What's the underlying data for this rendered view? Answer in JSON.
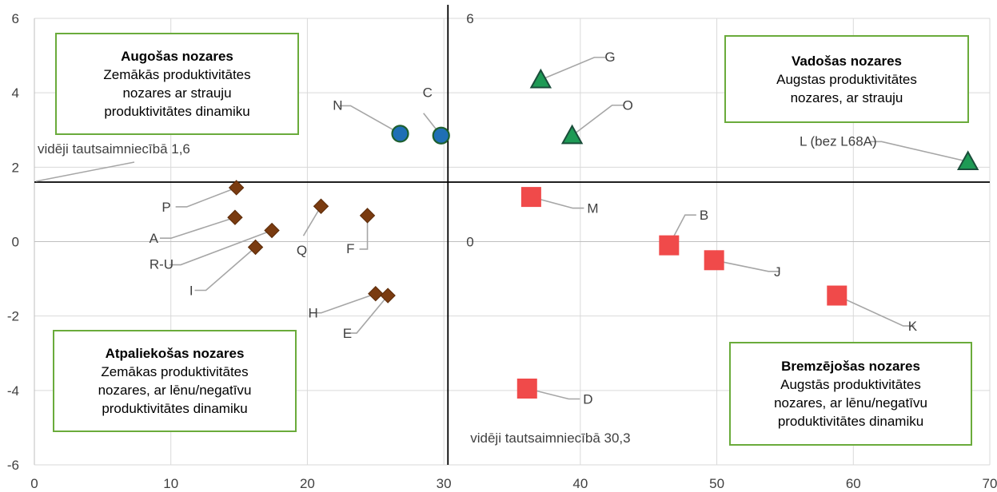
{
  "chart_data": {
    "type": "scatter",
    "xlim": [
      0,
      70
    ],
    "ylim": [
      -6,
      6
    ],
    "x_ticks": [
      "0",
      "10",
      "20",
      "30",
      "40",
      "50",
      "60",
      "70"
    ],
    "y_ticks": [
      "-6",
      "-4",
      "-2",
      "0",
      "2",
      "4",
      "6"
    ],
    "grid": true,
    "reference_lines": {
      "vertical_x": 30.3,
      "horizontal_y": 1.6,
      "vertical_label": "vidēji tautsaimniecībā 30,3",
      "horizontal_label": "vidēji tautsaimniecībā 1,6",
      "vertical_top_value": "6",
      "vertical_zero_value": "0"
    },
    "groups": [
      {
        "marker": "circle",
        "color": "#1f6fb5",
        "stroke": "#1e5f2e",
        "points": [
          {
            "label": "N",
            "x": 26.8,
            "y": 2.9
          },
          {
            "label": "C",
            "x": 29.8,
            "y": 2.85
          }
        ]
      },
      {
        "marker": "triangle",
        "color": "#1e9a55",
        "stroke": "#1a4d3a",
        "points": [
          {
            "label": "G",
            "x": 37.1,
            "y": 4.35
          },
          {
            "label": "O",
            "x": 39.4,
            "y": 2.85
          },
          {
            "label": "L (bez L68A)",
            "x": 68.4,
            "y": 2.15
          }
        ]
      },
      {
        "marker": "diamond",
        "color": "#7a3b10",
        "stroke": "#5a2a08",
        "points": [
          {
            "label": "P",
            "x": 14.8,
            "y": 1.45
          },
          {
            "label": "A",
            "x": 14.7,
            "y": 0.65
          },
          {
            "label": "R-U",
            "x": 17.4,
            "y": 0.3
          },
          {
            "label": "I",
            "x": 16.2,
            "y": -0.15
          },
          {
            "label": "Q",
            "x": 21.0,
            "y": 0.95
          },
          {
            "label": "F",
            "x": 24.4,
            "y": 0.7
          },
          {
            "label": "H",
            "x": 25.0,
            "y": -1.4
          },
          {
            "label": "E",
            "x": 25.9,
            "y": -1.45
          }
        ]
      },
      {
        "marker": "square",
        "color": "#f04a4a",
        "stroke": "#f04a4a",
        "points": [
          {
            "label": "M",
            "x": 36.4,
            "y": 1.2
          },
          {
            "label": "B",
            "x": 46.5,
            "y": -0.1
          },
          {
            "label": "J",
            "x": 49.8,
            "y": -0.5
          },
          {
            "label": "K",
            "x": 58.8,
            "y": -1.45
          },
          {
            "label": "D",
            "x": 36.1,
            "y": -3.95
          }
        ]
      }
    ],
    "quadrant_boxes": {
      "augosas": {
        "title": "Augošas nozares",
        "lines": [
          "Zemākās produktivitātes",
          "nozares ar strauju",
          "produktivitātes dinamiku"
        ]
      },
      "vadosas": {
        "title": "Vadošas nozares",
        "lines": [
          "Augstas produktivitātes",
          "nozares, ar strauju"
        ]
      },
      "atpaliekosas": {
        "title": "Atpaliekošas nozares",
        "lines": [
          "Zemākas produktivitātes",
          "nozares, ar lēnu/negatīvu",
          "produktivitātes dinamiku"
        ]
      },
      "bremzejosas": {
        "title": "Bremzējošas nozares",
        "lines": [
          "Augstās produktivitātes",
          "nozares, ar lēnu/negatīvu",
          "produktivitātes dinamiku"
        ]
      }
    }
  }
}
